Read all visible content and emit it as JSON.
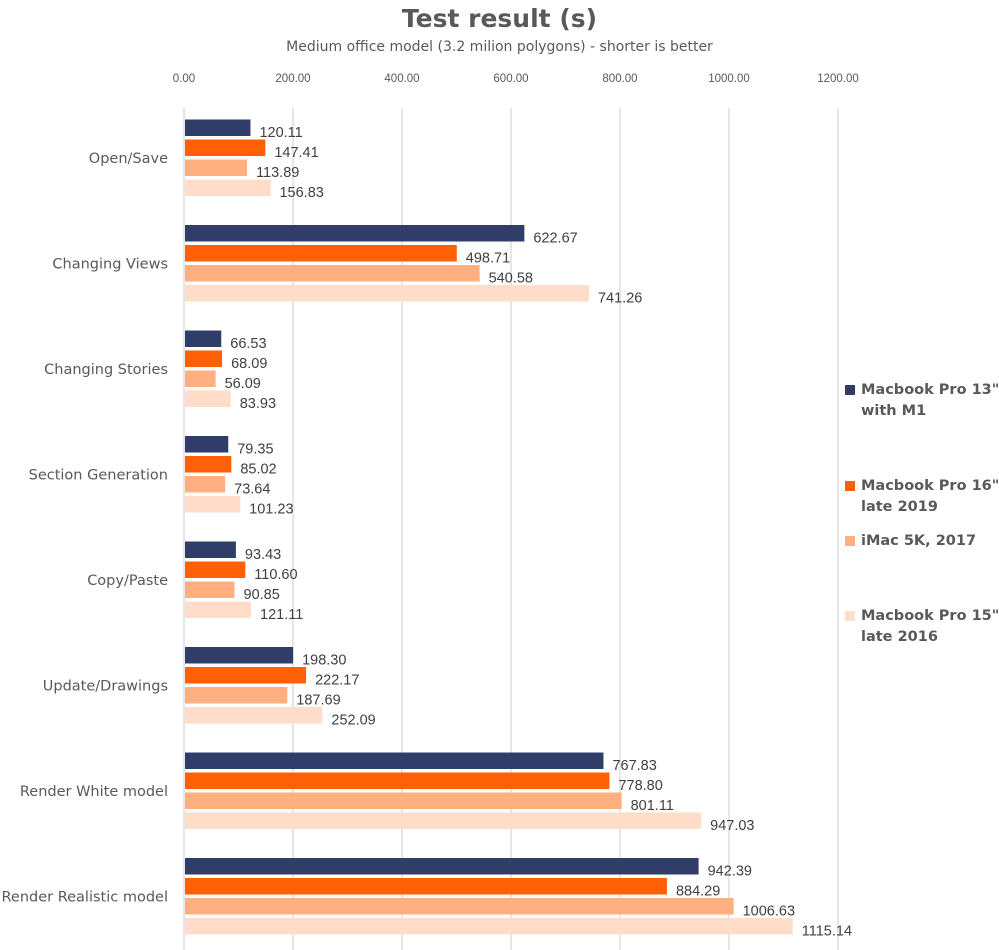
{
  "chart_data": {
    "type": "bar",
    "orientation": "horizontal",
    "title": "Test result (s)",
    "subtitle": "Medium office model (3.2 milion polygons) - shorter is better",
    "xlabel": "",
    "ylabel": "",
    "xlim": [
      0,
      1200
    ],
    "xticks": [
      0,
      200,
      400,
      600,
      800,
      1000,
      1200
    ],
    "xtick_labels": [
      "0.00",
      "200.00",
      "400.00",
      "600.00",
      "800.00",
      "1000.00",
      "1200.00"
    ],
    "grid": "vertical",
    "legend_position": "right",
    "categories": [
      "Open/Save",
      "Changing Views",
      "Changing Stories",
      "Section Generation",
      "Copy/Paste",
      "Update/Drawings",
      "Render White model",
      "Render Realistic model"
    ],
    "series": [
      {
        "name": "Macbook Pro 13\"\nwith M1",
        "color": "#313D69",
        "values": [
          120.11,
          622.67,
          66.53,
          79.35,
          93.43,
          198.3,
          767.83,
          942.39
        ],
        "labels": [
          "120.11",
          "622.67",
          "66.53",
          "79.35",
          "93.43",
          "198.30",
          "767.83",
          "942.39"
        ]
      },
      {
        "name": "Macbook Pro 16\"\nlate 2019",
        "color": "#FF6005",
        "values": [
          147.41,
          498.71,
          68.09,
          85.02,
          110.6,
          222.17,
          778.8,
          884.29
        ],
        "labels": [
          "147.41",
          "498.71",
          "68.09",
          "85.02",
          "110.60",
          "222.17",
          "778.80",
          "884.29"
        ]
      },
      {
        "name": "iMac 5K, 2017",
        "color": "#FFAF80",
        "values": [
          113.89,
          540.58,
          56.09,
          73.64,
          90.85,
          187.69,
          801.11,
          1006.63
        ],
        "labels": [
          "113.89",
          "540.58",
          "56.09",
          "73.64",
          "90.85",
          "187.69",
          "801.11",
          "1006.63"
        ]
      },
      {
        "name": "Macbook Pro 15\"\nlate 2016",
        "color": "#FFDDC8",
        "values": [
          156.83,
          741.26,
          83.93,
          101.23,
          121.11,
          252.09,
          947.03,
          1115.14
        ],
        "labels": [
          "156.83",
          "741.26",
          "83.93",
          "101.23",
          "121.11",
          "252.09",
          "947.03",
          "1115.14"
        ]
      }
    ]
  }
}
